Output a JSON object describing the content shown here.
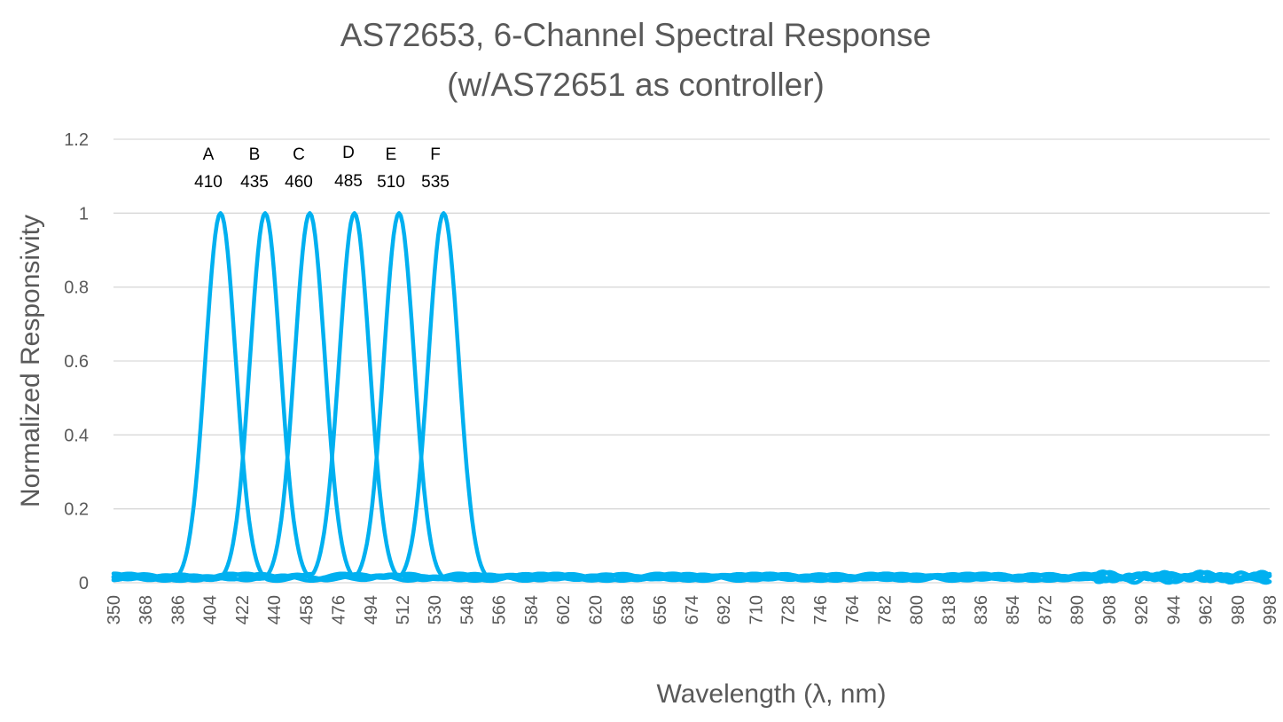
{
  "chart_data": {
    "type": "line",
    "title_line1": "AS72653, 6-Channel Spectral Response",
    "title_line2": "(w/AS72651 as controller)",
    "xlabel": "Wavelength (λ, nm)",
    "ylabel": "Normalized Responsivity",
    "xlim": [
      350,
      998
    ],
    "ylim": [
      0,
      1.2
    ],
    "yticks": [
      "0",
      "0.2",
      "0.4",
      "0.6",
      "0.8",
      "1",
      "1.2"
    ],
    "xticks": [
      "350",
      "368",
      "386",
      "404",
      "422",
      "440",
      "458",
      "476",
      "494",
      "512",
      "530",
      "548",
      "566",
      "584",
      "602",
      "620",
      "638",
      "656",
      "674",
      "692",
      "710",
      "728",
      "746",
      "764",
      "782",
      "800",
      "818",
      "836",
      "854",
      "872",
      "890",
      "908",
      "926",
      "944",
      "962",
      "980",
      "998"
    ],
    "grid": true,
    "line_color": "#00B0F0",
    "series": [
      {
        "channel": "A",
        "peak_nm": 410,
        "fwhm_nm": 20
      },
      {
        "channel": "B",
        "peak_nm": 435,
        "fwhm_nm": 20
      },
      {
        "channel": "C",
        "peak_nm": 460,
        "fwhm_nm": 20
      },
      {
        "channel": "D",
        "peak_nm": 485,
        "fwhm_nm": 20
      },
      {
        "channel": "E",
        "peak_nm": 510,
        "fwhm_nm": 20
      },
      {
        "channel": "F",
        "peak_nm": 535,
        "fwhm_nm": 20
      }
    ],
    "annotations": [
      {
        "letter": "A",
        "value": "410"
      },
      {
        "letter": "B",
        "value": "435"
      },
      {
        "letter": "C",
        "value": "460"
      },
      {
        "letter": "D",
        "value": "485"
      },
      {
        "letter": "E",
        "value": "510"
      },
      {
        "letter": "F",
        "value": "535"
      }
    ],
    "baseline_level": 0.015
  }
}
